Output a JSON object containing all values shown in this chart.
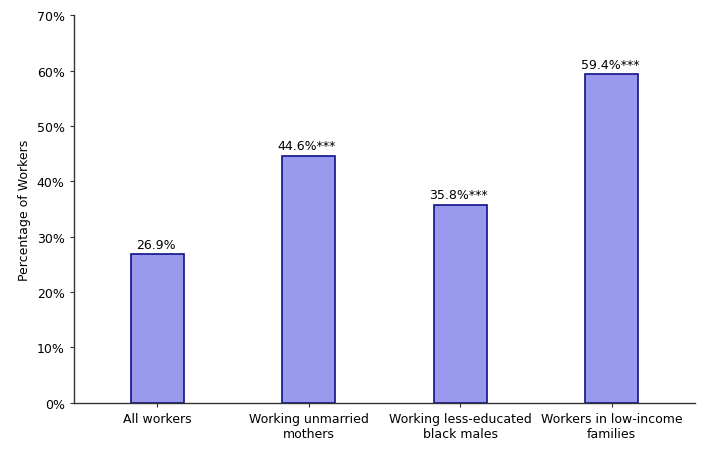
{
  "categories": [
    "All workers",
    "Working unmarried\nmothers",
    "Working less-educated\nblack males",
    "Workers in low-income\nfamilies"
  ],
  "values": [
    26.9,
    44.6,
    35.8,
    59.4
  ],
  "labels": [
    "26.9%",
    "44.6%***",
    "35.8%***",
    "59.4%***"
  ],
  "bar_color": "#9999ee",
  "bar_edge_color": "#111188",
  "ylabel": "Percentage of Workers",
  "ylim_max": 0.7,
  "ytick_vals": [
    0.0,
    0.1,
    0.2,
    0.3,
    0.4,
    0.5,
    0.6,
    0.7
  ],
  "ytick_labels": [
    "0%",
    "10%",
    "20%",
    "30%",
    "40%",
    "50%",
    "60%",
    "70%"
  ],
  "label_fontsize": 9,
  "ylabel_fontsize": 9,
  "tick_fontsize": 9,
  "xtick_fontsize": 9,
  "bar_width": 0.35
}
